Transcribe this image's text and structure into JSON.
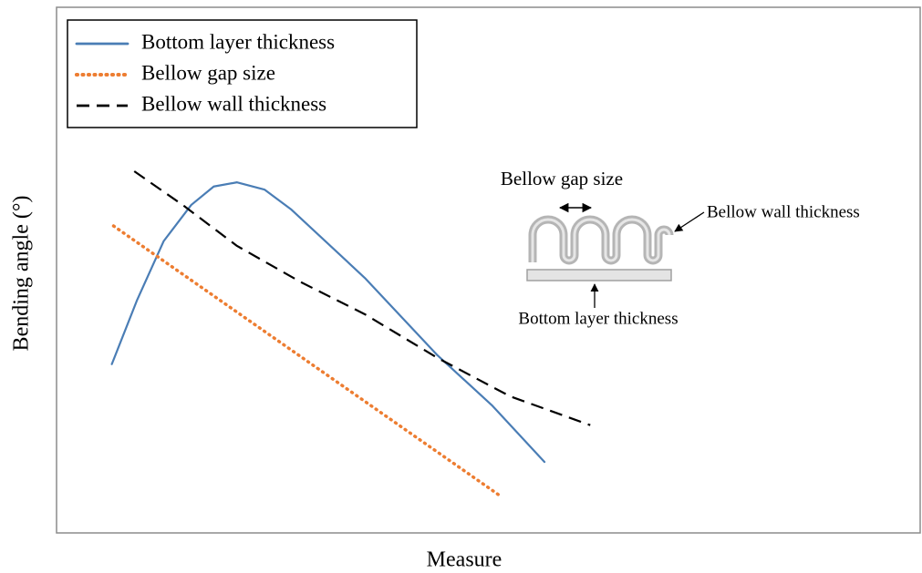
{
  "chart_data": {
    "type": "line",
    "x_label": "Measure",
    "y_label": "Bending angle (°)",
    "xlim": [
      0,
      100
    ],
    "ylim": [
      0,
      100
    ],
    "legend": "upper left",
    "series": [
      {
        "name": "Bottom layer thickness",
        "color": "#4a7db5",
        "style": "solid",
        "x": [
          6.4,
          9.3,
          12.4,
          15.6,
          18.2,
          20.9,
          24.1,
          27.2,
          35.7,
          44.1,
          50.4,
          56.5
        ],
        "values": [
          32.1,
          44.2,
          55.5,
          62.4,
          65.9,
          66.7,
          65.3,
          61.5,
          48.5,
          33.8,
          24.3,
          13.5
        ]
      },
      {
        "name": "Bellow gap size",
        "color": "#ed7d31",
        "style": "dotted",
        "x": [
          6.6,
          51.5
        ],
        "values": [
          58.4,
          6.9
        ]
      },
      {
        "name": "Bellow wall thickness",
        "color": "#000000",
        "style": "dashed",
        "x": [
          9.0,
          14.6,
          20.9,
          28.3,
          35.7,
          44.1,
          52.5,
          61.8
        ],
        "values": [
          68.8,
          62.4,
          54.6,
          47.7,
          41.6,
          33.3,
          26.0,
          20.5
        ]
      }
    ],
    "annotations": [
      "Bellow gap size",
      "Bellow wall thickness",
      "Bottom layer thickness"
    ]
  }
}
